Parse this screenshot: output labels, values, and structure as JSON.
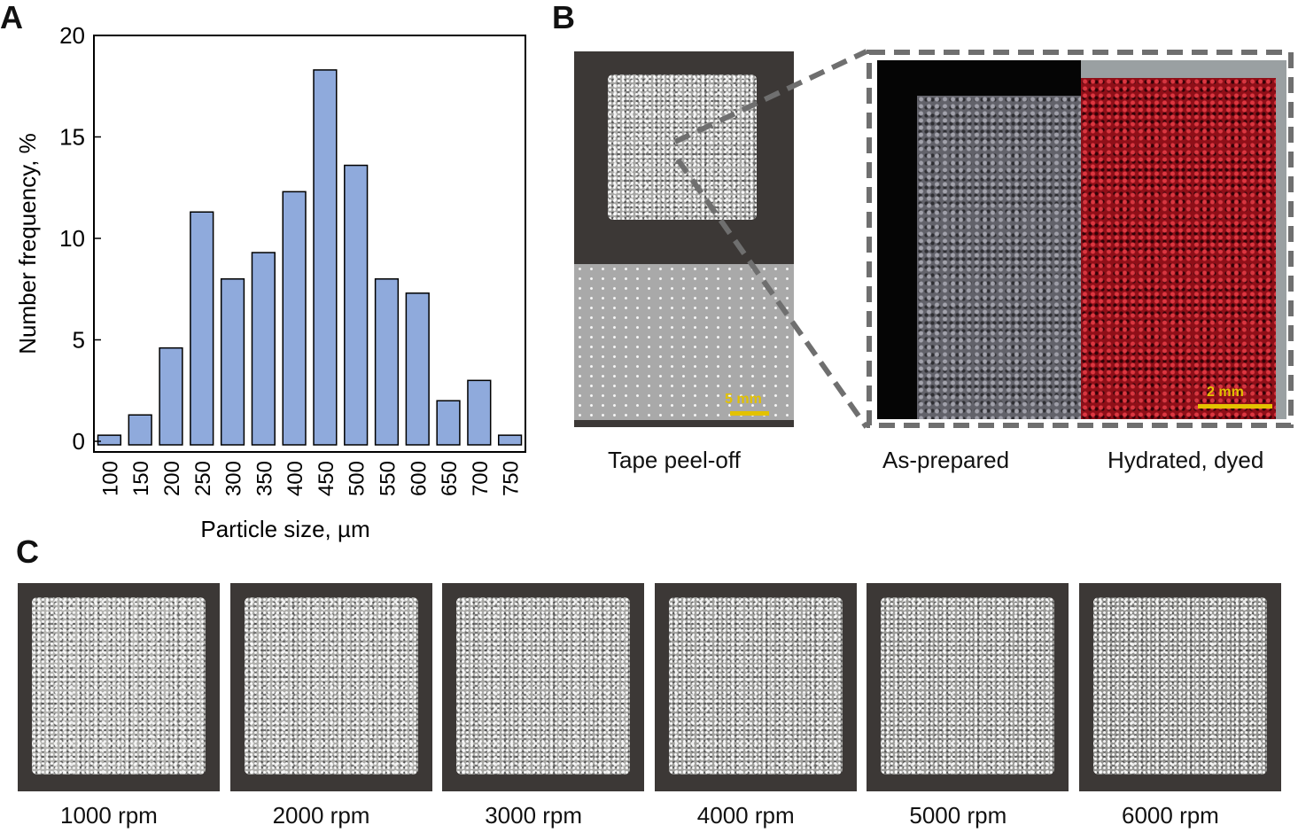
{
  "panels": {
    "a": "A",
    "b": "B",
    "c": "C"
  },
  "chart_data": {
    "type": "bar",
    "categories": [
      "100",
      "150",
      "200",
      "250",
      "300",
      "350",
      "400",
      "450",
      "500",
      "550",
      "600",
      "650",
      "700",
      "750"
    ],
    "values": [
      0.3,
      1.3,
      4.6,
      11.3,
      8.0,
      9.3,
      12.3,
      18.3,
      13.6,
      8.0,
      7.3,
      2.0,
      3.0,
      0.3
    ],
    "xlabel": "Particle size, µm",
    "ylabel": "Number frequency, %",
    "ylim": [
      0,
      20
    ],
    "yticks": [
      "0",
      "5",
      "10",
      "15",
      "20"
    ],
    "bar_color": "#8faadc",
    "grid": false
  },
  "panel_b": {
    "tape_caption": "Tape peel-off",
    "scale_left": "5 mm",
    "scale_right": "2 mm",
    "caption_left": "As-prepared",
    "caption_right": "Hydrated, dyed",
    "dye_color": "#b3121e"
  },
  "panel_c": {
    "labels": [
      "1000 rpm",
      "2000 rpm",
      "3000 rpm",
      "4000 rpm",
      "5000 rpm",
      "6000 rpm"
    ]
  }
}
